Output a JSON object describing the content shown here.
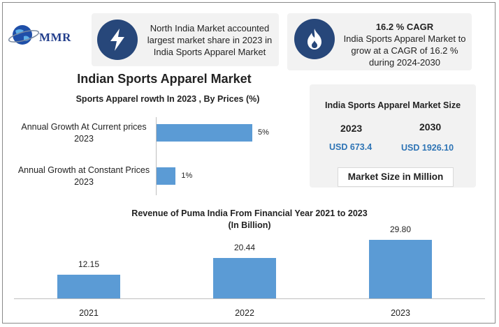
{
  "logo": {
    "text": "MMR",
    "icon": "globe-icon"
  },
  "cards": [
    {
      "icon": "lightning-icon",
      "text": "North India Market accounted largest market share in 2023 in India Sports Apparel Market"
    },
    {
      "icon": "flame-icon",
      "heading": "16.2 % CAGR",
      "text": "India Sports Apparel Market to grow at a CAGR of 16.2 % during 2024-2030"
    }
  ],
  "main_title": "Indian Sports Apparel Market",
  "market_size": {
    "title": "India Sports Apparel Market Size",
    "year_start": "2023",
    "year_end": "2030",
    "value_start": "USD 673.4",
    "value_end": "USD 1926.10",
    "unit": "Market Size in Million"
  },
  "colors": {
    "bar": "#5b9bd5",
    "icon_bg": "#27477a",
    "value_text": "#2e74b5"
  },
  "chart_data": [
    {
      "type": "bar",
      "orientation": "horizontal",
      "title": "Sports Apparel rowth In 2023 , By Prices (%)",
      "categories": [
        "Annual Growth At Current prices 2023",
        "Annual Growth at Constant Prices 2023"
      ],
      "values": [
        5,
        1
      ],
      "value_labels": [
        "5%",
        "1%"
      ],
      "xlim": [
        0,
        7.3
      ]
    },
    {
      "type": "bar",
      "orientation": "vertical",
      "title": "Revenue of Puma India From Financial Year 2021 to 2023",
      "subtitle": "(In Billion)",
      "categories": [
        "2021",
        "2022",
        "2023"
      ],
      "values": [
        12.15,
        20.44,
        29.8
      ],
      "value_labels": [
        "12.15",
        "20.44",
        "29.80"
      ],
      "ylim": [
        0,
        36.5
      ]
    }
  ]
}
